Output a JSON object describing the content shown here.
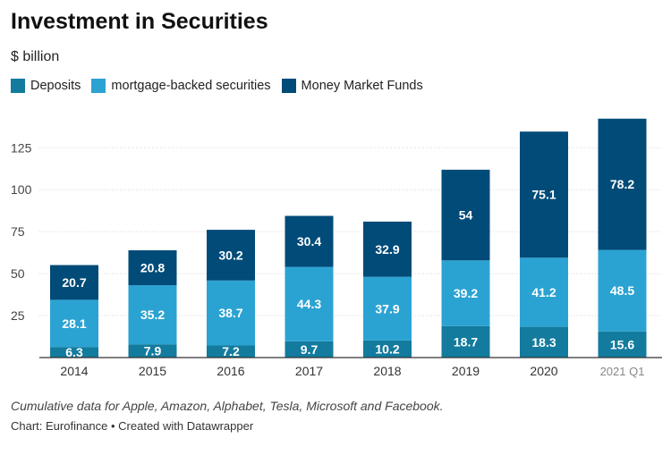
{
  "header": {
    "title": "Investment in Securities",
    "subtitle": "$ billion"
  },
  "footer": {
    "notes": "Cumulative data for Apple, Amazon, Alphabet, Tesla, Microsoft and Facebook.",
    "source": "Chart: Eurofinance • Created with Datawrapper"
  },
  "chart_data": {
    "type": "bar",
    "stacked": true,
    "title": "Investment in Securities",
    "subtitle": "$ billion",
    "categories": [
      "2014",
      "2015",
      "2016",
      "2017",
      "2018",
      "2019",
      "2020",
      "2021 Q1"
    ],
    "series": [
      {
        "name": "Deposits",
        "color": "#137b9e",
        "values": [
          6.3,
          7.9,
          7.2,
          9.7,
          10.2,
          18.7,
          18.3,
          15.6
        ]
      },
      {
        "name": "mortgage-backed securities",
        "color": "#2ba3d2",
        "values": [
          28.1,
          35.2,
          38.7,
          44.3,
          37.9,
          39.2,
          41.2,
          48.5
        ]
      },
      {
        "name": "Money Market Funds",
        "color": "#004b78",
        "values": [
          20.7,
          20.8,
          30.2,
          30.4,
          32.9,
          54,
          75.1,
          78.2
        ]
      }
    ],
    "yticks": [
      "25",
      "50",
      "75",
      "100",
      "125"
    ],
    "ylim": [
      0,
      142
    ],
    "grid": true,
    "legend": "top-left"
  }
}
